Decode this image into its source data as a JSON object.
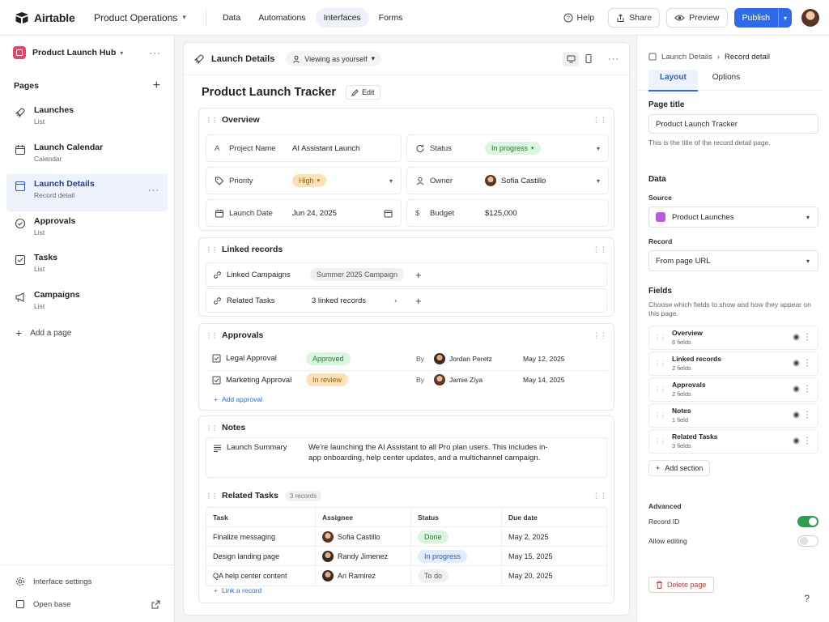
{
  "topbar": {
    "app_name": "Airtable",
    "base_name": "Product Operations",
    "tabs": [
      {
        "label": "Data",
        "active": false
      },
      {
        "label": "Automations",
        "active": false
      },
      {
        "label": "Interfaces",
        "active": true
      },
      {
        "label": "Forms",
        "active": false
      }
    ],
    "help_label": "Help",
    "share_label": "Share",
    "preview_label": "Preview",
    "publish_label": "Publish"
  },
  "sidebar": {
    "interface_name": "Product Launch Hub",
    "pages_heading": "Pages",
    "items": [
      {
        "label": "Launches",
        "sub": "List",
        "icon": "rocket-icon",
        "active": false
      },
      {
        "label": "Launch Calendar",
        "sub": "Calendar",
        "icon": "calendar-icon",
        "active": false
      },
      {
        "label": "Launch Details",
        "sub": "Record detail",
        "icon": "record-detail-icon",
        "active": true
      },
      {
        "label": "Approvals",
        "sub": "List",
        "icon": "check-circle-icon",
        "active": false
      },
      {
        "label": "Tasks",
        "sub": "List",
        "icon": "checkbox-icon",
        "active": false
      },
      {
        "label": "Campaigns",
        "sub": "List",
        "icon": "megaphone-icon",
        "active": false
      }
    ],
    "add_page_label": "Add a page",
    "settings_label": "Interface settings",
    "open_base_label": "Open base"
  },
  "main": {
    "header_title": "Launch Details",
    "viewing_label": "Viewing as yourself",
    "page_title": "Product Launch Tracker",
    "edit_label": "Edit",
    "overview": {
      "heading": "Overview",
      "project_name_label": "Project Name",
      "project_name_value": "AI Assistant Launch",
      "status_label": "Status",
      "status_value": "In progress",
      "priority_label": "Priority",
      "priority_value": "High",
      "owner_label": "Owner",
      "owner_value": "Sofia Castillo",
      "launch_date_label": "Launch Date",
      "launch_date_value": "Jun 24, 2025",
      "budget_label": "Budget",
      "budget_value": "$125,000"
    },
    "linked": {
      "heading": "Linked records",
      "campaigns_label": "Linked Campaigns",
      "campaigns_value": "Summer 2025 Campaign",
      "tasks_label": "Related Tasks",
      "tasks_value": "3 linked records"
    },
    "approvals": {
      "heading": "Approvals",
      "rows": [
        {
          "name": "Legal Approval",
          "status": "Approved",
          "by": "By",
          "person": "Jordan Peretz",
          "date": "May 12, 2025"
        },
        {
          "name": "Marketing Approval",
          "status": "In review",
          "by": "By",
          "person": "Jamie Ziya",
          "date": "May 14, 2025"
        }
      ],
      "add_label": "Add approval"
    },
    "notes": {
      "heading": "Notes",
      "label": "Launch Summary",
      "text": "We're launching the AI Assistant to all Pro plan users. This includes in-app onboarding, help center updates, and a multichannel campaign."
    },
    "tasks": {
      "heading": "Related Tasks",
      "count": "3 records",
      "columns": [
        "Task",
        "Assignee",
        "Status",
        "Due date"
      ],
      "rows": [
        {
          "task": "Finalize messaging",
          "assignee": "Sofia Castillo",
          "status": "Done",
          "due": "May 2, 2025"
        },
        {
          "task": "Design landing page",
          "assignee": "Randy Jimenez",
          "status": "In progress",
          "due": "May 15, 2025"
        },
        {
          "task": "QA help center content",
          "assignee": "Ari Ramirez",
          "status": "To do",
          "due": "May 20, 2025"
        }
      ],
      "add_label": "Link a record"
    }
  },
  "panel": {
    "crumb_parent": "Launch Details",
    "crumb_current": "Record detail",
    "tab_layout": "Layout",
    "tab_options": "Options",
    "page_title_heading": "Page title",
    "page_title_value": "Product Launch Tracker",
    "page_title_help": "This is the title of the record detail page.",
    "data_heading": "Data",
    "source_label": "Source",
    "source_value": "Product Launches",
    "record_label": "Record",
    "record_value": "From page URL",
    "fields_heading": "Fields",
    "fields_help": "Choose which fields to show and how they appear on this page.",
    "fields": [
      {
        "name": "Overview",
        "count": "6 fields"
      },
      {
        "name": "Linked records",
        "count": "2 fields"
      },
      {
        "name": "Approvals",
        "count": "2 fields"
      },
      {
        "name": "Notes",
        "count": "1 field"
      },
      {
        "name": "Related Tasks",
        "count": "3 fields"
      }
    ],
    "add_section_label": "Add section",
    "advanced_heading": "Advanced",
    "record_id_label": "Record ID",
    "record_id_on": true,
    "allow_editing_label": "Allow editing",
    "allow_editing_on": false,
    "delete_label": "Delete page",
    "help_mark": "?"
  },
  "colors": {
    "accent": "#2d6bea",
    "interface_badge": "#e8436b",
    "source_badge": "#b65ee0",
    "toggle_on": "#2f9e4f",
    "delete": "#d13a3a"
  }
}
